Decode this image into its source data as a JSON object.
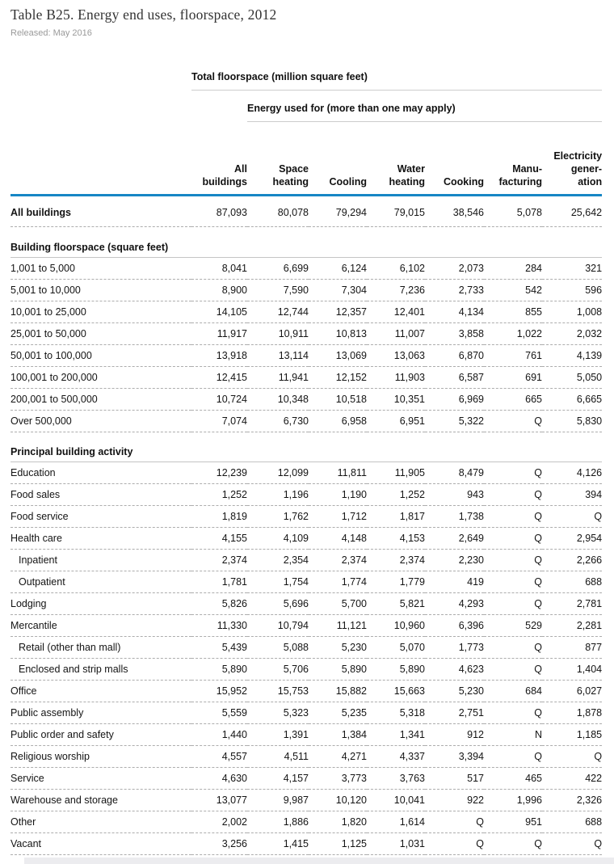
{
  "page": {
    "title": "Table B25. Energy end uses, floorspace, 2012",
    "released": "Released: May 2016"
  },
  "colors": {
    "header_rule_blue": "#1686c5"
  },
  "table": {
    "group_headers": {
      "total_floorspace": "Total floorspace (million square feet)",
      "energy_used": "Energy used for (more than one may apply)"
    },
    "columns": [
      "All\nbuildings",
      "Space\nheating",
      "Cooling",
      "Water\nheating",
      "Cooking",
      "Manu-\nfacturing",
      "Electricity\ngener-\nation"
    ],
    "sections": [
      {
        "header": null,
        "rows": [
          {
            "label": "All buildings",
            "bold": true,
            "indent": false,
            "values": [
              "87,093",
              "80,078",
              "79,294",
              "79,015",
              "38,546",
              "5,078",
              "25,642"
            ]
          }
        ]
      },
      {
        "header": "Building floorspace (square feet)",
        "rows": [
          {
            "label": "1,001 to 5,000",
            "bold": false,
            "indent": false,
            "values": [
              "8,041",
              "6,699",
              "6,124",
              "6,102",
              "2,073",
              "284",
              "321"
            ]
          },
          {
            "label": "5,001 to 10,000",
            "bold": false,
            "indent": false,
            "values": [
              "8,900",
              "7,590",
              "7,304",
              "7,236",
              "2,733",
              "542",
              "596"
            ]
          },
          {
            "label": "10,001 to 25,000",
            "bold": false,
            "indent": false,
            "values": [
              "14,105",
              "12,744",
              "12,357",
              "12,401",
              "4,134",
              "855",
              "1,008"
            ]
          },
          {
            "label": "25,001 to 50,000",
            "bold": false,
            "indent": false,
            "values": [
              "11,917",
              "10,911",
              "10,813",
              "11,007",
              "3,858",
              "1,022",
              "2,032"
            ]
          },
          {
            "label": "50,001 to 100,000",
            "bold": false,
            "indent": false,
            "values": [
              "13,918",
              "13,114",
              "13,069",
              "13,063",
              "6,870",
              "761",
              "4,139"
            ]
          },
          {
            "label": "100,001 to 200,000",
            "bold": false,
            "indent": false,
            "values": [
              "12,415",
              "11,941",
              "12,152",
              "11,903",
              "6,587",
              "691",
              "5,050"
            ]
          },
          {
            "label": "200,001 to 500,000",
            "bold": false,
            "indent": false,
            "values": [
              "10,724",
              "10,348",
              "10,518",
              "10,351",
              "6,969",
              "665",
              "6,665"
            ]
          },
          {
            "label": "Over 500,000",
            "bold": false,
            "indent": false,
            "values": [
              "7,074",
              "6,730",
              "6,958",
              "6,951",
              "5,322",
              "Q",
              "5,830"
            ]
          }
        ]
      },
      {
        "header": "Principal building activity",
        "rows": [
          {
            "label": "Education",
            "bold": false,
            "indent": false,
            "values": [
              "12,239",
              "12,099",
              "11,811",
              "11,905",
              "8,479",
              "Q",
              "4,126"
            ]
          },
          {
            "label": "Food sales",
            "bold": false,
            "indent": false,
            "values": [
              "1,252",
              "1,196",
              "1,190",
              "1,252",
              "943",
              "Q",
              "394"
            ]
          },
          {
            "label": "Food service",
            "bold": false,
            "indent": false,
            "values": [
              "1,819",
              "1,762",
              "1,712",
              "1,817",
              "1,738",
              "Q",
              "Q"
            ]
          },
          {
            "label": "Health care",
            "bold": false,
            "indent": false,
            "values": [
              "4,155",
              "4,109",
              "4,148",
              "4,153",
              "2,649",
              "Q",
              "2,954"
            ]
          },
          {
            "label": "Inpatient",
            "bold": false,
            "indent": true,
            "values": [
              "2,374",
              "2,354",
              "2,374",
              "2,374",
              "2,230",
              "Q",
              "2,266"
            ]
          },
          {
            "label": "Outpatient",
            "bold": false,
            "indent": true,
            "values": [
              "1,781",
              "1,754",
              "1,774",
              "1,779",
              "419",
              "Q",
              "688"
            ]
          },
          {
            "label": "Lodging",
            "bold": false,
            "indent": false,
            "values": [
              "5,826",
              "5,696",
              "5,700",
              "5,821",
              "4,293",
              "Q",
              "2,781"
            ]
          },
          {
            "label": "Mercantile",
            "bold": false,
            "indent": false,
            "values": [
              "11,330",
              "10,794",
              "11,121",
              "10,960",
              "6,396",
              "529",
              "2,281"
            ]
          },
          {
            "label": "Retail (other than mall)",
            "bold": false,
            "indent": true,
            "values": [
              "5,439",
              "5,088",
              "5,230",
              "5,070",
              "1,773",
              "Q",
              "877"
            ]
          },
          {
            "label": "Enclosed and strip malls",
            "bold": false,
            "indent": true,
            "values": [
              "5,890",
              "5,706",
              "5,890",
              "5,890",
              "4,623",
              "Q",
              "1,404"
            ]
          },
          {
            "label": "Office",
            "bold": false,
            "indent": false,
            "values": [
              "15,952",
              "15,753",
              "15,882",
              "15,663",
              "5,230",
              "684",
              "6,027"
            ]
          },
          {
            "label": "Public assembly",
            "bold": false,
            "indent": false,
            "values": [
              "5,559",
              "5,323",
              "5,235",
              "5,318",
              "2,751",
              "Q",
              "1,878"
            ]
          },
          {
            "label": "Public order and safety",
            "bold": false,
            "indent": false,
            "values": [
              "1,440",
              "1,391",
              "1,384",
              "1,341",
              "912",
              "N",
              "1,185"
            ]
          },
          {
            "label": "Religious worship",
            "bold": false,
            "indent": false,
            "values": [
              "4,557",
              "4,511",
              "4,271",
              "4,337",
              "3,394",
              "Q",
              "Q"
            ]
          },
          {
            "label": "Service",
            "bold": false,
            "indent": false,
            "values": [
              "4,630",
              "4,157",
              "3,773",
              "3,763",
              "517",
              "465",
              "422"
            ]
          },
          {
            "label": "Warehouse and storage",
            "bold": false,
            "indent": false,
            "values": [
              "13,077",
              "9,987",
              "10,120",
              "10,041",
              "922",
              "1,996",
              "2,326"
            ]
          },
          {
            "label": "Other",
            "bold": false,
            "indent": false,
            "values": [
              "2,002",
              "1,886",
              "1,820",
              "1,614",
              "Q",
              "951",
              "688"
            ]
          },
          {
            "label": "Vacant",
            "bold": false,
            "indent": false,
            "values": [
              "3,256",
              "1,415",
              "1,125",
              "1,031",
              "Q",
              "Q",
              "Q"
            ]
          }
        ]
      }
    ]
  }
}
